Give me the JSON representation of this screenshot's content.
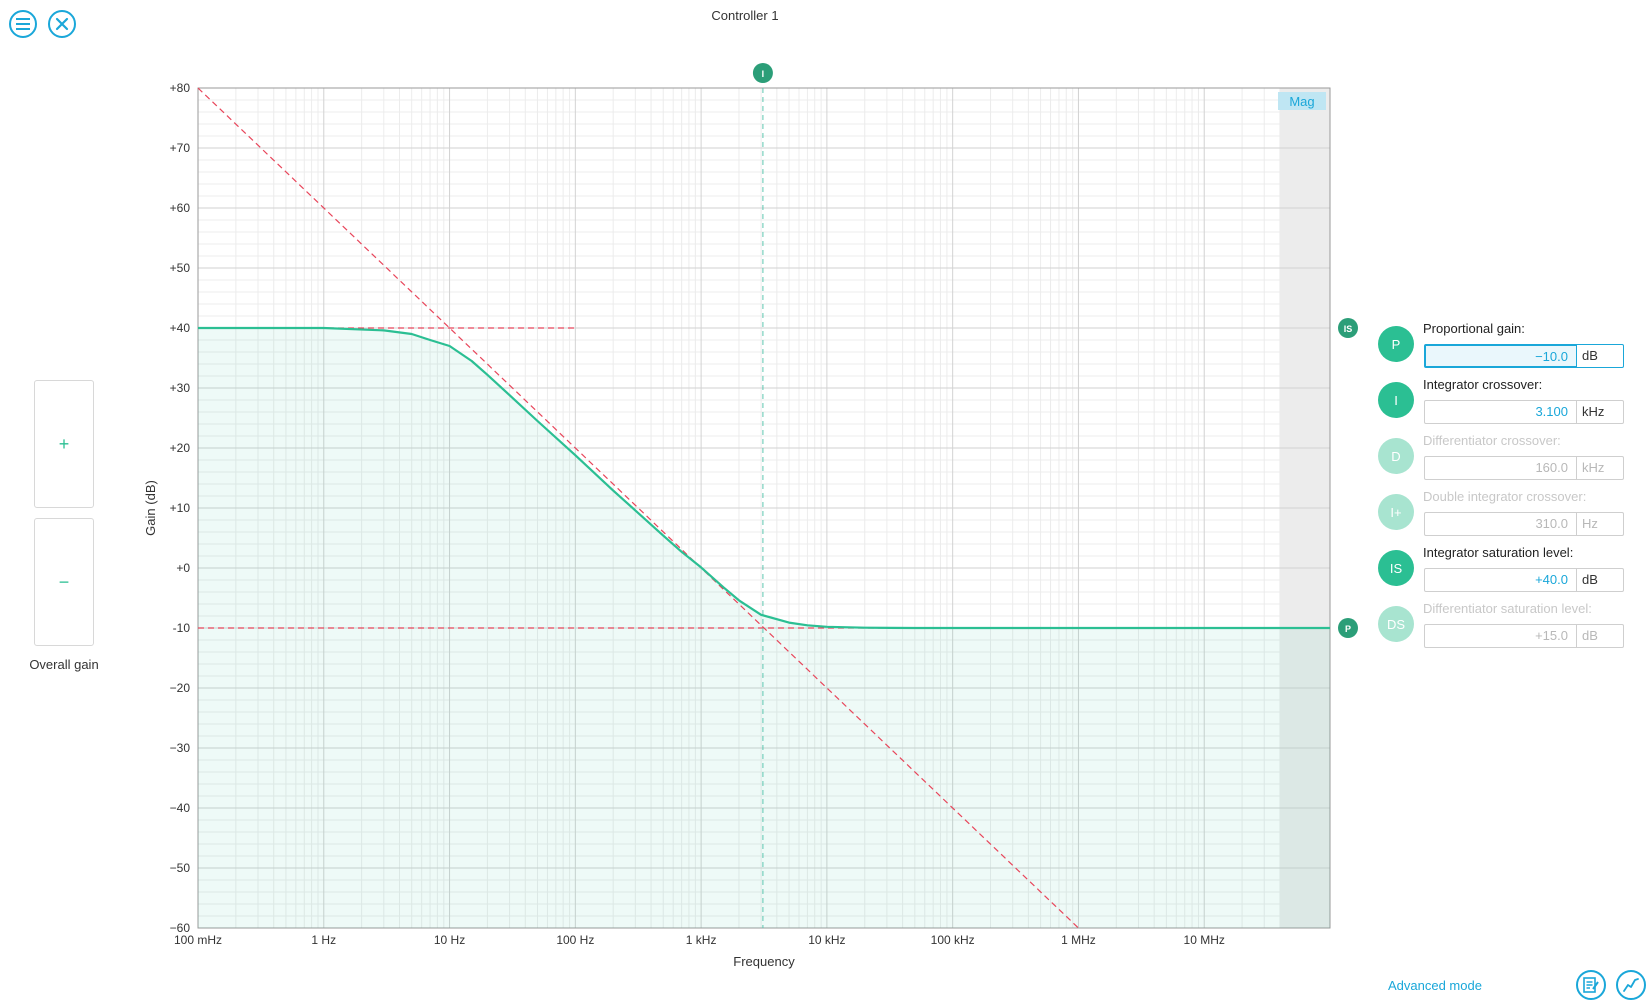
{
  "header": {
    "title": "Controller 1"
  },
  "icons": {
    "menu": "menu-icon",
    "close": "close-icon",
    "notes": "notes-icon",
    "graph": "graph-icon"
  },
  "overall_gain": {
    "plus_label": "+",
    "minus_label": "−",
    "label": "Overall gain"
  },
  "chart_data": {
    "type": "line",
    "title": "",
    "xlabel": "Frequency",
    "ylabel": "Gain (dB)",
    "x_scale": "log",
    "xlim_hz": [
      0.1,
      100000000
    ],
    "ylim": [
      -60,
      80
    ],
    "grid": true,
    "x_ticks": [
      {
        "value": 0.1,
        "label": "100 mHz"
      },
      {
        "value": 1,
        "label": "1 Hz"
      },
      {
        "value": 10,
        "label": "10 Hz"
      },
      {
        "value": 100,
        "label": "100 Hz"
      },
      {
        "value": 1000,
        "label": "1 kHz"
      },
      {
        "value": 10000,
        "label": "10 kHz"
      },
      {
        "value": 100000,
        "label": "100 kHz"
      },
      {
        "value": 1000000,
        "label": "1 MHz"
      },
      {
        "value": 10000000,
        "label": "10 MHz"
      }
    ],
    "y_ticks": [
      {
        "value": 80,
        "label": "+80"
      },
      {
        "value": 70,
        "label": "+70"
      },
      {
        "value": 60,
        "label": "+60"
      },
      {
        "value": 50,
        "label": "+50"
      },
      {
        "value": 40,
        "label": "+40"
      },
      {
        "value": 30,
        "label": "+30"
      },
      {
        "value": 20,
        "label": "+20"
      },
      {
        "value": 10,
        "label": "+10"
      },
      {
        "value": 0,
        "label": "+0"
      },
      {
        "value": -10,
        "label": "-10"
      },
      {
        "value": -20,
        "label": "−20"
      },
      {
        "value": -30,
        "label": "−30"
      },
      {
        "value": -40,
        "label": "−40"
      },
      {
        "value": -50,
        "label": "−50"
      },
      {
        "value": -60,
        "label": "−60"
      }
    ],
    "series": [
      {
        "values_desc": "magnitude response",
        "points": [
          [
            0.1,
            40.0
          ],
          [
            1,
            40.0
          ],
          [
            3,
            39.6
          ],
          [
            5,
            39.0
          ],
          [
            7,
            38.0
          ],
          [
            10,
            37.0
          ],
          [
            15,
            34.5
          ],
          [
            20,
            32.2
          ],
          [
            30,
            28.8
          ],
          [
            50,
            24.5
          ],
          [
            100,
            18.8
          ],
          [
            200,
            12.9
          ],
          [
            300,
            9.6
          ],
          [
            500,
            5.4
          ],
          [
            700,
            2.7
          ],
          [
            1000,
            0.1
          ],
          [
            1500,
            -3.2
          ],
          [
            2000,
            -5.4
          ],
          [
            3000,
            -7.8
          ],
          [
            5000,
            -9.1
          ],
          [
            7000,
            -9.55
          ],
          [
            10000,
            -9.8
          ],
          [
            20000,
            -9.95
          ],
          [
            50000,
            -10.0
          ],
          [
            100000,
            -10.0
          ],
          [
            1000000,
            -10.0
          ],
          [
            10000000,
            -10.0
          ],
          [
            100000000,
            -10.0
          ]
        ]
      }
    ],
    "asymptotes": {
      "integrator": [
        [
          0.1,
          80
        ],
        [
          1000000,
          -60
        ]
      ],
      "saturation_level_db": 40,
      "saturation_span_hz": [
        2.5,
        100
      ],
      "proportional_level_db": -10
    },
    "marker_line_hz": 3100,
    "markers": {
      "integrator": "I",
      "saturation": "IS",
      "proportional": "P"
    },
    "shaded_region_hz": [
      40000000,
      100000000
    ],
    "mag_label": "Mag",
    "colors": {
      "curve": "#2bbf93",
      "asymptote": "#e8455a",
      "marker": "#2b9e78",
      "accent": "#1aa7d9"
    }
  },
  "params": [
    {
      "badge": "P",
      "label": "Proportional gain:",
      "value": "−10.0",
      "unit": "dB",
      "enabled": true,
      "active": true
    },
    {
      "badge": "I",
      "label": "Integrator crossover:",
      "value": "3.100",
      "unit": "kHz",
      "enabled": true,
      "active": false
    },
    {
      "badge": "D",
      "label": "Differentiator crossover:",
      "value": "160.0",
      "unit": "kHz",
      "enabled": false,
      "active": false
    },
    {
      "badge": "I+",
      "label": "Double integrator crossover:",
      "value": "310.0",
      "unit": "Hz",
      "enabled": false,
      "active": false
    },
    {
      "badge": "IS",
      "label": "Integrator saturation level:",
      "value": "+40.0",
      "unit": "dB",
      "enabled": true,
      "active": false
    },
    {
      "badge": "DS",
      "label": "Differentiator saturation level:",
      "value": "+15.0",
      "unit": "dB",
      "enabled": false,
      "active": false
    }
  ],
  "footer": {
    "advanced_mode_label": "Advanced mode"
  }
}
